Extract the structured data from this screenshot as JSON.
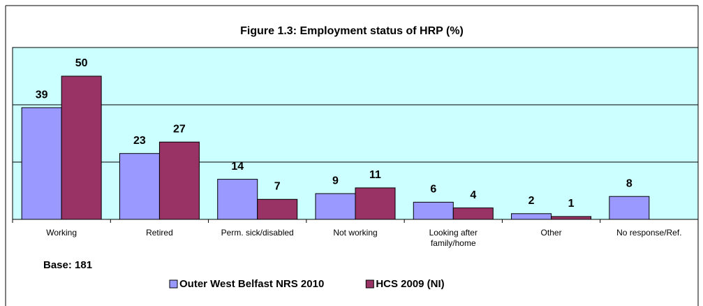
{
  "chart_data": {
    "type": "bar",
    "title": "Figure 1.3: Employment status of HRP (%)",
    "categories": [
      "Working",
      "Retired",
      "Perm. sick/disabled",
      "Not working",
      "Looking after family/home",
      "Other",
      "No response/Ref."
    ],
    "series": [
      {
        "name": "Outer West Belfast NRS 2010",
        "color": "#9999ff",
        "values": [
          39,
          23,
          14,
          9,
          6,
          2,
          8
        ]
      },
      {
        "name": "HCS 2009 (NI)",
        "color": "#993366",
        "values": [
          50,
          27,
          7,
          11,
          4,
          1,
          null
        ]
      }
    ],
    "ylim": [
      0,
      60
    ],
    "yticks": [
      0,
      20,
      40,
      60
    ],
    "grid": true,
    "annotation": "Base: 181",
    "legend": "bottom"
  }
}
